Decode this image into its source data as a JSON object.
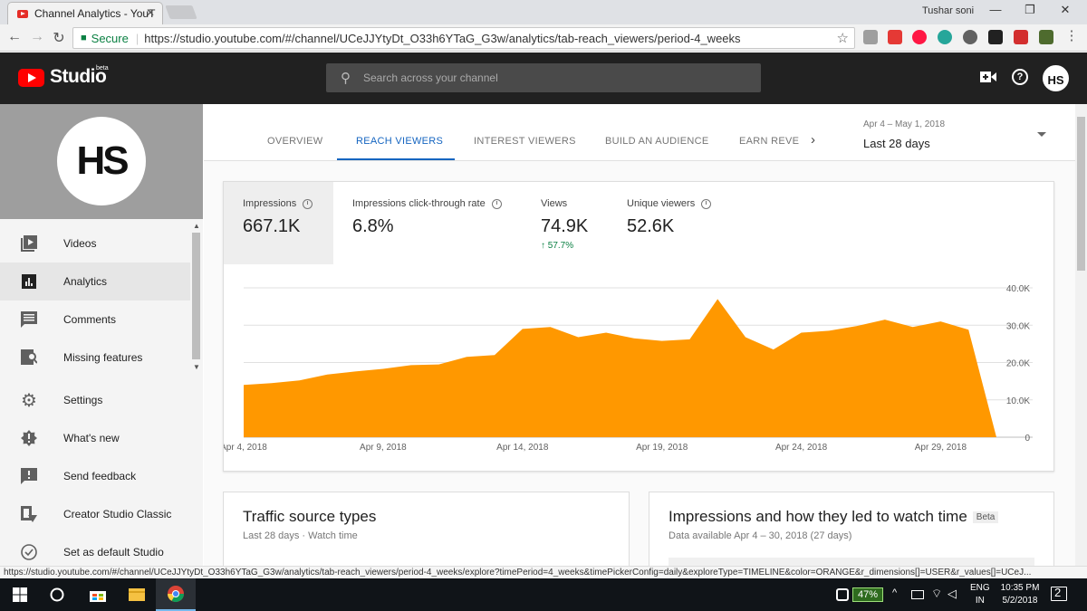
{
  "browser": {
    "tab_title": "Channel Analytics - YouT",
    "tab_close": "✕",
    "profile_name": "Tushar soni",
    "win_min": "—",
    "win_max": "❐",
    "win_close": "✕",
    "nav_back": "←",
    "nav_forward": "→",
    "nav_reload": "↻",
    "secure_label": "Secure",
    "url": "https://studio.youtube.com/#/channel/UCeJJYtyDt_O33h6YTaG_G3w/analytics/tab-reach_viewers/period-4_weeks",
    "star": "☆",
    "status_url": "https://studio.youtube.com/#/channel/UCeJJYtyDt_O33h6YTaG_G3w/analytics/tab-reach_viewers/period-4_weeks/explore?timePeriod=4_weeks&timePickerConfig=daily&exploreType=TIMELINE&color=ORANGE&r_dimensions[]=USER&r_values[]=UCeJ..."
  },
  "studio": {
    "logo_text": "Studio",
    "beta": "beta",
    "search_placeholder": "Search across your channel",
    "help": "?",
    "avatar": "HS"
  },
  "sidebar": {
    "channel_logo": "HS",
    "items": [
      {
        "label": "Videos",
        "icon": "videos-icon"
      },
      {
        "label": "Analytics",
        "icon": "analytics-icon"
      },
      {
        "label": "Comments",
        "icon": "comments-icon"
      },
      {
        "label": "Missing features",
        "icon": "missing-features-icon"
      },
      {
        "label": "Settings",
        "icon": "gear-icon"
      },
      {
        "label": "What's new",
        "icon": "whats-new-icon"
      },
      {
        "label": "Send feedback",
        "icon": "feedback-icon"
      },
      {
        "label": "Creator Studio Classic",
        "icon": "classic-icon"
      },
      {
        "label": "Set as default Studio",
        "icon": "check-circle-icon"
      }
    ]
  },
  "analytics": {
    "tabs": [
      "OVERVIEW",
      "REACH VIEWERS",
      "INTEREST VIEWERS",
      "BUILD AN AUDIENCE",
      "EARN REVE"
    ],
    "active_tab": "REACH VIEWERS",
    "next_arrow": "›",
    "date_range": "Apr 4 – May 1, 2018",
    "date_label": "Last 28 days",
    "metrics": [
      {
        "label": "Impressions",
        "value": "667.1K",
        "change": ""
      },
      {
        "label": "Impressions click-through rate",
        "value": "6.8%",
        "change": ""
      },
      {
        "label": "Views",
        "value": "74.9K",
        "change": "↑ 57.7%"
      },
      {
        "label": "Unique viewers",
        "value": "52.6K",
        "change": ""
      }
    ],
    "cards": [
      {
        "title": "Traffic source types",
        "subtitle": "Last 28 days · Watch time",
        "beta": ""
      },
      {
        "title": "Impressions and how they led to watch time",
        "subtitle": "Data available Apr 4 – 30, 2018 (27 days)",
        "beta": "Beta"
      }
    ]
  },
  "chart_data": {
    "type": "area",
    "color": "#ff9800",
    "x": [
      "Apr 4, 2018",
      "Apr 5, 2018",
      "Apr 6, 2018",
      "Apr 7, 2018",
      "Apr 8, 2018",
      "Apr 9, 2018",
      "Apr 10, 2018",
      "Apr 11, 2018",
      "Apr 12, 2018",
      "Apr 13, 2018",
      "Apr 14, 2018",
      "Apr 15, 2018",
      "Apr 16, 2018",
      "Apr 17, 2018",
      "Apr 18, 2018",
      "Apr 19, 2018",
      "Apr 20, 2018",
      "Apr 21, 2018",
      "Apr 22, 2018",
      "Apr 23, 2018",
      "Apr 24, 2018",
      "Apr 25, 2018",
      "Apr 26, 2018",
      "Apr 27, 2018",
      "Apr 28, 2018",
      "Apr 29, 2018",
      "Apr 30, 2018",
      "May 1, 2018"
    ],
    "values": [
      14000,
      14500,
      15200,
      16800,
      17600,
      18300,
      19300,
      19500,
      21500,
      22000,
      29000,
      29500,
      26800,
      28000,
      26500,
      25800,
      26200,
      37000,
      26800,
      23500,
      28000,
      28500,
      29800,
      31500,
      29500,
      31000,
      28800,
      0
    ],
    "tick_labels": [
      "Apr 4, 2018",
      "Apr 9, 2018",
      "Apr 14, 2018",
      "Apr 19, 2018",
      "Apr 24, 2018",
      "Apr 29, 2018"
    ],
    "ytick_labels": [
      "0",
      "10.0K",
      "20.0K",
      "30.0K",
      "40.0K"
    ],
    "ylim": [
      0,
      40000
    ],
    "grid": true
  },
  "taskbar": {
    "battery": "47%",
    "lang1": "ENG",
    "lang2": "IN",
    "time": "10:35 PM",
    "date": "5/2/2018",
    "notif": "2"
  }
}
